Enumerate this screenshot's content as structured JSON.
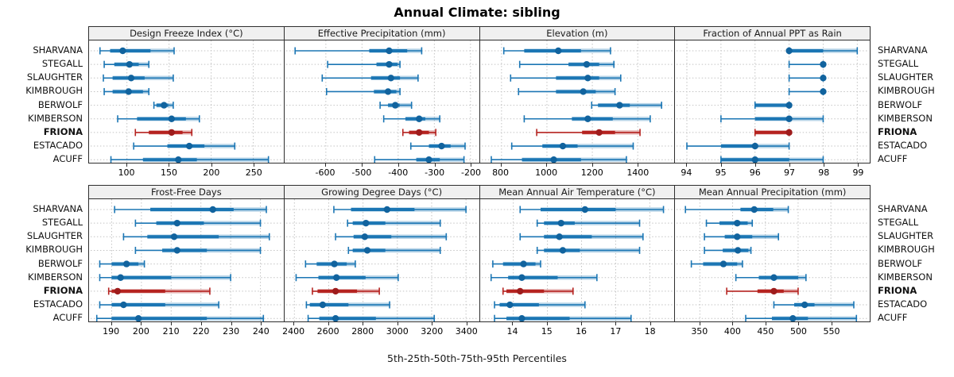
{
  "title": "Annual Climate: sibling",
  "caption": "5th-25th-50th-75th-95th Percentiles",
  "colors": {
    "blue": "#1B76B4",
    "blue_dot": "#11639E",
    "red": "#B5221F",
    "red_dot": "#9E1C1C",
    "grid": "#C3C3C3",
    "header_bg": "#F0F0F0",
    "panel_border": "#2E2E2E"
  },
  "chart_data": {
    "type": "dot-interval",
    "layout": "2x4-trellis",
    "percentiles": [
      5,
      25,
      50,
      75,
      95
    ],
    "categories": [
      "SHARVANA",
      "STEGALL",
      "SLAUGHTER",
      "KIMBROUGH",
      "BERWOLF",
      "KIMBERSON",
      "FRIONA",
      "ESTACADO",
      "ACUFF"
    ],
    "highlight": "FRIONA",
    "legend_position": "none",
    "grid": "dotted",
    "panels": [
      {
        "title": "Design Freeze Index (°C)",
        "xlim": [
          55,
          286
        ],
        "ticks": [
          100,
          150,
          200,
          250
        ],
        "values": [
          [
            68,
            80,
            95,
            128,
            156
          ],
          [
            73,
            85,
            103,
            114,
            126
          ],
          [
            72,
            83,
            105,
            121,
            155
          ],
          [
            73,
            83,
            102,
            119,
            126
          ],
          [
            132,
            135,
            144,
            149,
            155
          ],
          [
            89,
            112,
            153,
            170,
            186
          ],
          [
            110,
            126,
            153,
            166,
            177
          ],
          [
            108,
            148,
            174,
            192,
            228
          ],
          [
            81,
            119,
            161,
            183,
            268
          ]
        ]
      },
      {
        "title": "Effective Precipitation (mm)",
        "xlim": [
          -714,
          -176
        ],
        "ticks": [
          -600,
          -500,
          -400,
          -300,
          -200
        ],
        "values": [
          [
            -685,
            -480,
            -425,
            -375,
            -335
          ],
          [
            -595,
            -460,
            -425,
            -402,
            -395
          ],
          [
            -610,
            -475,
            -420,
            -395,
            -345
          ],
          [
            -598,
            -467,
            -428,
            -405,
            -395
          ],
          [
            -450,
            -428,
            -408,
            -396,
            -363
          ],
          [
            -440,
            -380,
            -342,
            -325,
            -285
          ],
          [
            -387,
            -370,
            -342,
            -315,
            -296
          ],
          [
            -365,
            -315,
            -280,
            -255,
            -215
          ],
          [
            -465,
            -350,
            -315,
            -285,
            -218
          ]
        ]
      },
      {
        "title": "Elevation (m)",
        "xlim": [
          706,
          1563
        ],
        "ticks": [
          800,
          1000,
          1200,
          1400
        ],
        "values": [
          [
            810,
            900,
            1050,
            1150,
            1280
          ],
          [
            880,
            1095,
            1175,
            1230,
            1295
          ],
          [
            840,
            1040,
            1180,
            1230,
            1325
          ],
          [
            875,
            1040,
            1160,
            1215,
            1300
          ],
          [
            1197,
            1225,
            1320,
            1365,
            1505
          ],
          [
            900,
            1110,
            1180,
            1290,
            1455
          ],
          [
            955,
            1155,
            1230,
            1300,
            1410
          ],
          [
            845,
            980,
            1070,
            1135,
            1380
          ],
          [
            755,
            890,
            1030,
            1150,
            1350
          ]
        ]
      },
      {
        "title": "Fraction of Annual PPT as Rain",
        "xlim": [
          93.65,
          99.36
        ],
        "ticks": [
          94,
          95,
          96,
          97,
          98,
          99
        ],
        "values": [
          [
            97,
            97,
            97,
            98,
            99
          ],
          [
            97,
            98,
            98,
            98,
            98
          ],
          [
            97,
            98,
            98,
            98,
            98
          ],
          [
            97,
            98,
            98,
            98,
            98
          ],
          [
            96,
            96,
            97,
            97,
            97
          ],
          [
            95,
            96,
            97,
            97,
            98
          ],
          [
            96,
            96,
            97,
            97,
            97
          ],
          [
            94,
            95,
            96,
            96,
            97
          ],
          [
            95,
            95,
            96,
            97,
            98
          ]
        ]
      },
      {
        "title": "Frost-Free Days",
        "xlim": [
          182.4,
          247.8
        ],
        "ticks": [
          190,
          200,
          210,
          220,
          230,
          240
        ],
        "values": [
          [
            191,
            203,
            224,
            231,
            242
          ],
          [
            198,
            205,
            212,
            221,
            240
          ],
          [
            194,
            202,
            211,
            226,
            243
          ],
          [
            198,
            207,
            212,
            222,
            240
          ],
          [
            186,
            190,
            195,
            199,
            201
          ],
          [
            186,
            190,
            193,
            210,
            230
          ],
          [
            189,
            190,
            192,
            208,
            223
          ],
          [
            186,
            190,
            194,
            208,
            226
          ],
          [
            185,
            190,
            199,
            222,
            241
          ]
        ]
      },
      {
        "title": "Growing Degree Days (°C)",
        "xlim": [
          2343,
          3477
        ],
        "ticks": [
          2400,
          2600,
          2800,
          3000,
          3200,
          3400
        ],
        "values": [
          [
            2630,
            2730,
            2940,
            3100,
            3400
          ],
          [
            2710,
            2740,
            2817,
            2930,
            3250
          ],
          [
            2640,
            2745,
            2810,
            2965,
            3285
          ],
          [
            2715,
            2740,
            2825,
            2930,
            3250
          ],
          [
            2465,
            2530,
            2633,
            2705,
            2755
          ],
          [
            2410,
            2540,
            2645,
            2815,
            3005
          ],
          [
            2505,
            2535,
            2640,
            2765,
            2895
          ],
          [
            2470,
            2490,
            2565,
            2715,
            2955
          ],
          [
            2480,
            2545,
            2640,
            2875,
            3215
          ]
        ]
      },
      {
        "title": "Mean Annual Air Temperature (°C)",
        "xlim": [
          13.03,
          18.73
        ],
        "ticks": [
          14,
          15,
          16,
          17,
          18
        ],
        "values": [
          [
            14.2,
            14.8,
            16.1,
            17.0,
            18.4
          ],
          [
            14.7,
            14.9,
            15.4,
            15.8,
            17.7
          ],
          [
            14.2,
            14.9,
            15.35,
            16.3,
            17.8
          ],
          [
            14.7,
            14.9,
            15.45,
            15.95,
            17.7
          ],
          [
            13.4,
            13.7,
            14.3,
            14.65,
            14.8
          ],
          [
            13.35,
            13.85,
            14.25,
            15.3,
            16.45
          ],
          [
            13.7,
            13.8,
            14.2,
            14.9,
            15.75
          ],
          [
            13.45,
            13.6,
            13.9,
            14.75,
            16.1
          ],
          [
            13.45,
            13.8,
            14.25,
            15.65,
            17.45
          ]
        ]
      },
      {
        "title": "Mean Annual Precipitation (mm)",
        "xlim": [
          312,
          609
        ],
        "ticks": [
          350,
          400,
          450,
          500,
          550
        ],
        "values": [
          [
            328,
            412,
            433,
            462,
            485
          ],
          [
            360,
            380,
            407,
            423,
            430
          ],
          [
            357,
            388,
            407,
            430,
            470
          ],
          [
            357,
            385,
            408,
            424,
            428
          ],
          [
            337,
            355,
            386,
            407,
            415
          ],
          [
            405,
            440,
            463,
            500,
            512
          ],
          [
            391,
            438,
            463,
            478,
            500
          ],
          [
            463,
            494,
            510,
            525,
            585
          ],
          [
            420,
            460,
            492,
            515,
            589
          ]
        ]
      }
    ]
  }
}
